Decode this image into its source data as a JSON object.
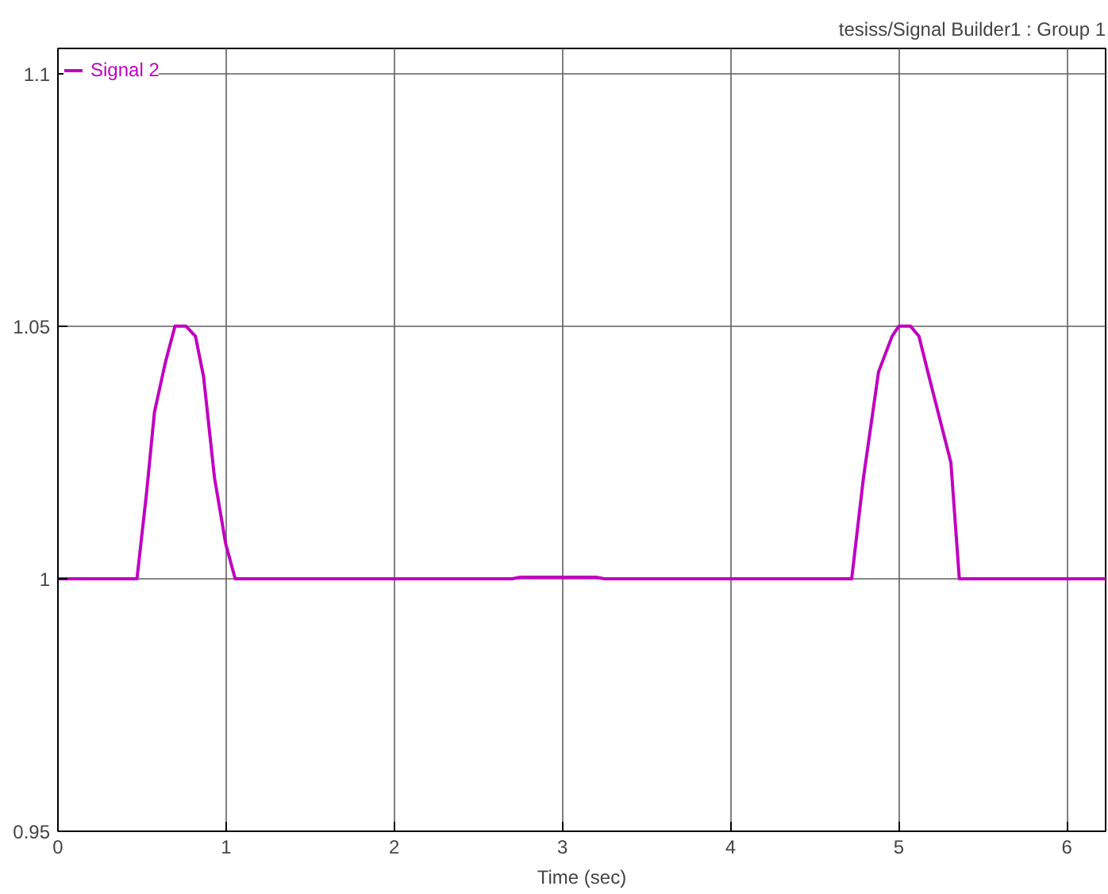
{
  "chart_data": {
    "type": "line",
    "title": "tesiss/Signal Builder1 : Group 1",
    "xlabel": "Time (sec)",
    "series": [
      {
        "name": "Signal 2",
        "color": "#c000c0",
        "x": [
          0,
          0.47,
          0.527,
          0.574,
          0.64,
          0.696,
          0.762,
          0.818,
          0.866,
          0.931,
          0.997,
          1.054,
          2.7,
          2.75,
          3.2,
          3.25,
          4.72,
          4.79,
          4.88,
          4.96,
          5.0,
          5.07,
          5.12,
          5.18,
          5.31,
          5.36,
          6.23
        ],
        "values": [
          1,
          1,
          1.017,
          1.033,
          1.043,
          1.05,
          1.05,
          1.048,
          1.04,
          1.02,
          1.007,
          1,
          1,
          1.0003,
          1.0003,
          1,
          1,
          1.02,
          1.041,
          1.048,
          1.05,
          1.05,
          1.048,
          1.04,
          1.023,
          1,
          1
        ]
      }
    ],
    "xlim": [
      0,
      6.23
    ],
    "ylim": [
      0.95,
      1.105
    ],
    "xticks": [
      0,
      1,
      2,
      3,
      4,
      5,
      6
    ],
    "yticks": [
      0.95,
      1,
      1.05,
      1.1
    ],
    "grid": true,
    "legend": "top left",
    "marker": "none",
    "line_style": "solid"
  }
}
